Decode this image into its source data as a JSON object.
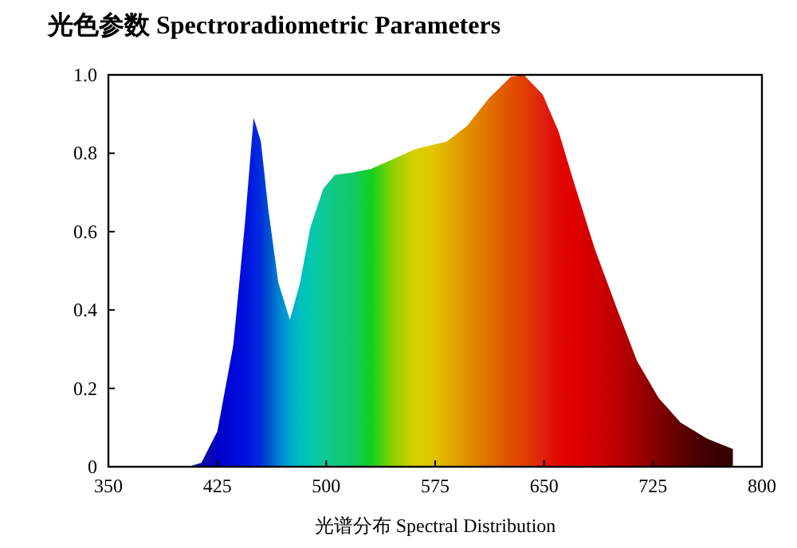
{
  "chart_data": {
    "type": "area",
    "title": "光色参数 Spectroradiometric Parameters",
    "xlabel": "光谱分布 Spectral Distribution",
    "x": [
      405,
      414,
      425,
      436,
      444,
      450,
      455,
      460,
      467,
      475,
      482,
      489,
      498,
      506,
      517,
      531,
      546,
      561,
      572,
      583,
      597,
      612,
      627,
      636,
      649,
      660,
      671,
      685,
      700,
      714,
      729,
      744,
      762,
      780
    ],
    "values": [
      0,
      0.01,
      0.09,
      0.31,
      0.62,
      0.89,
      0.83,
      0.66,
      0.47,
      0.375,
      0.47,
      0.61,
      0.71,
      0.745,
      0.75,
      0.76,
      0.785,
      0.81,
      0.82,
      0.83,
      0.87,
      0.94,
      0.995,
      1.0,
      0.95,
      0.855,
      0.72,
      0.555,
      0.405,
      0.27,
      0.175,
      0.113,
      0.072,
      0.045
    ],
    "colors": [
      "#1a1a90",
      "#1010a0",
      "#0000c8",
      "#0008d8",
      "#0010dc",
      "#0020e0",
      "#0030dc",
      "#0050d0",
      "#0080d0",
      "#00a8d0",
      "#00c0c0",
      "#00c8b0",
      "#10c898",
      "#10c880",
      "#10c868",
      "#10d020",
      "#90d000",
      "#d8d000",
      "#e0c800",
      "#e0b000",
      "#e09000",
      "#e07000",
      "#e05000",
      "#e04000",
      "#e02010",
      "#e00800",
      "#e00000",
      "#d00000",
      "#c00000",
      "#a00000",
      "#800000",
      "#600000",
      "#400000",
      "#300000"
    ],
    "xlim": [
      350,
      800
    ],
    "ylim": [
      0,
      1
    ],
    "xticks": [
      350,
      425,
      500,
      575,
      650,
      725,
      800
    ],
    "yticks": [
      0,
      0.2,
      0.4,
      0.6,
      0.8,
      {
        "value": 1,
        "label": "1.0"
      }
    ],
    "grid": false
  }
}
